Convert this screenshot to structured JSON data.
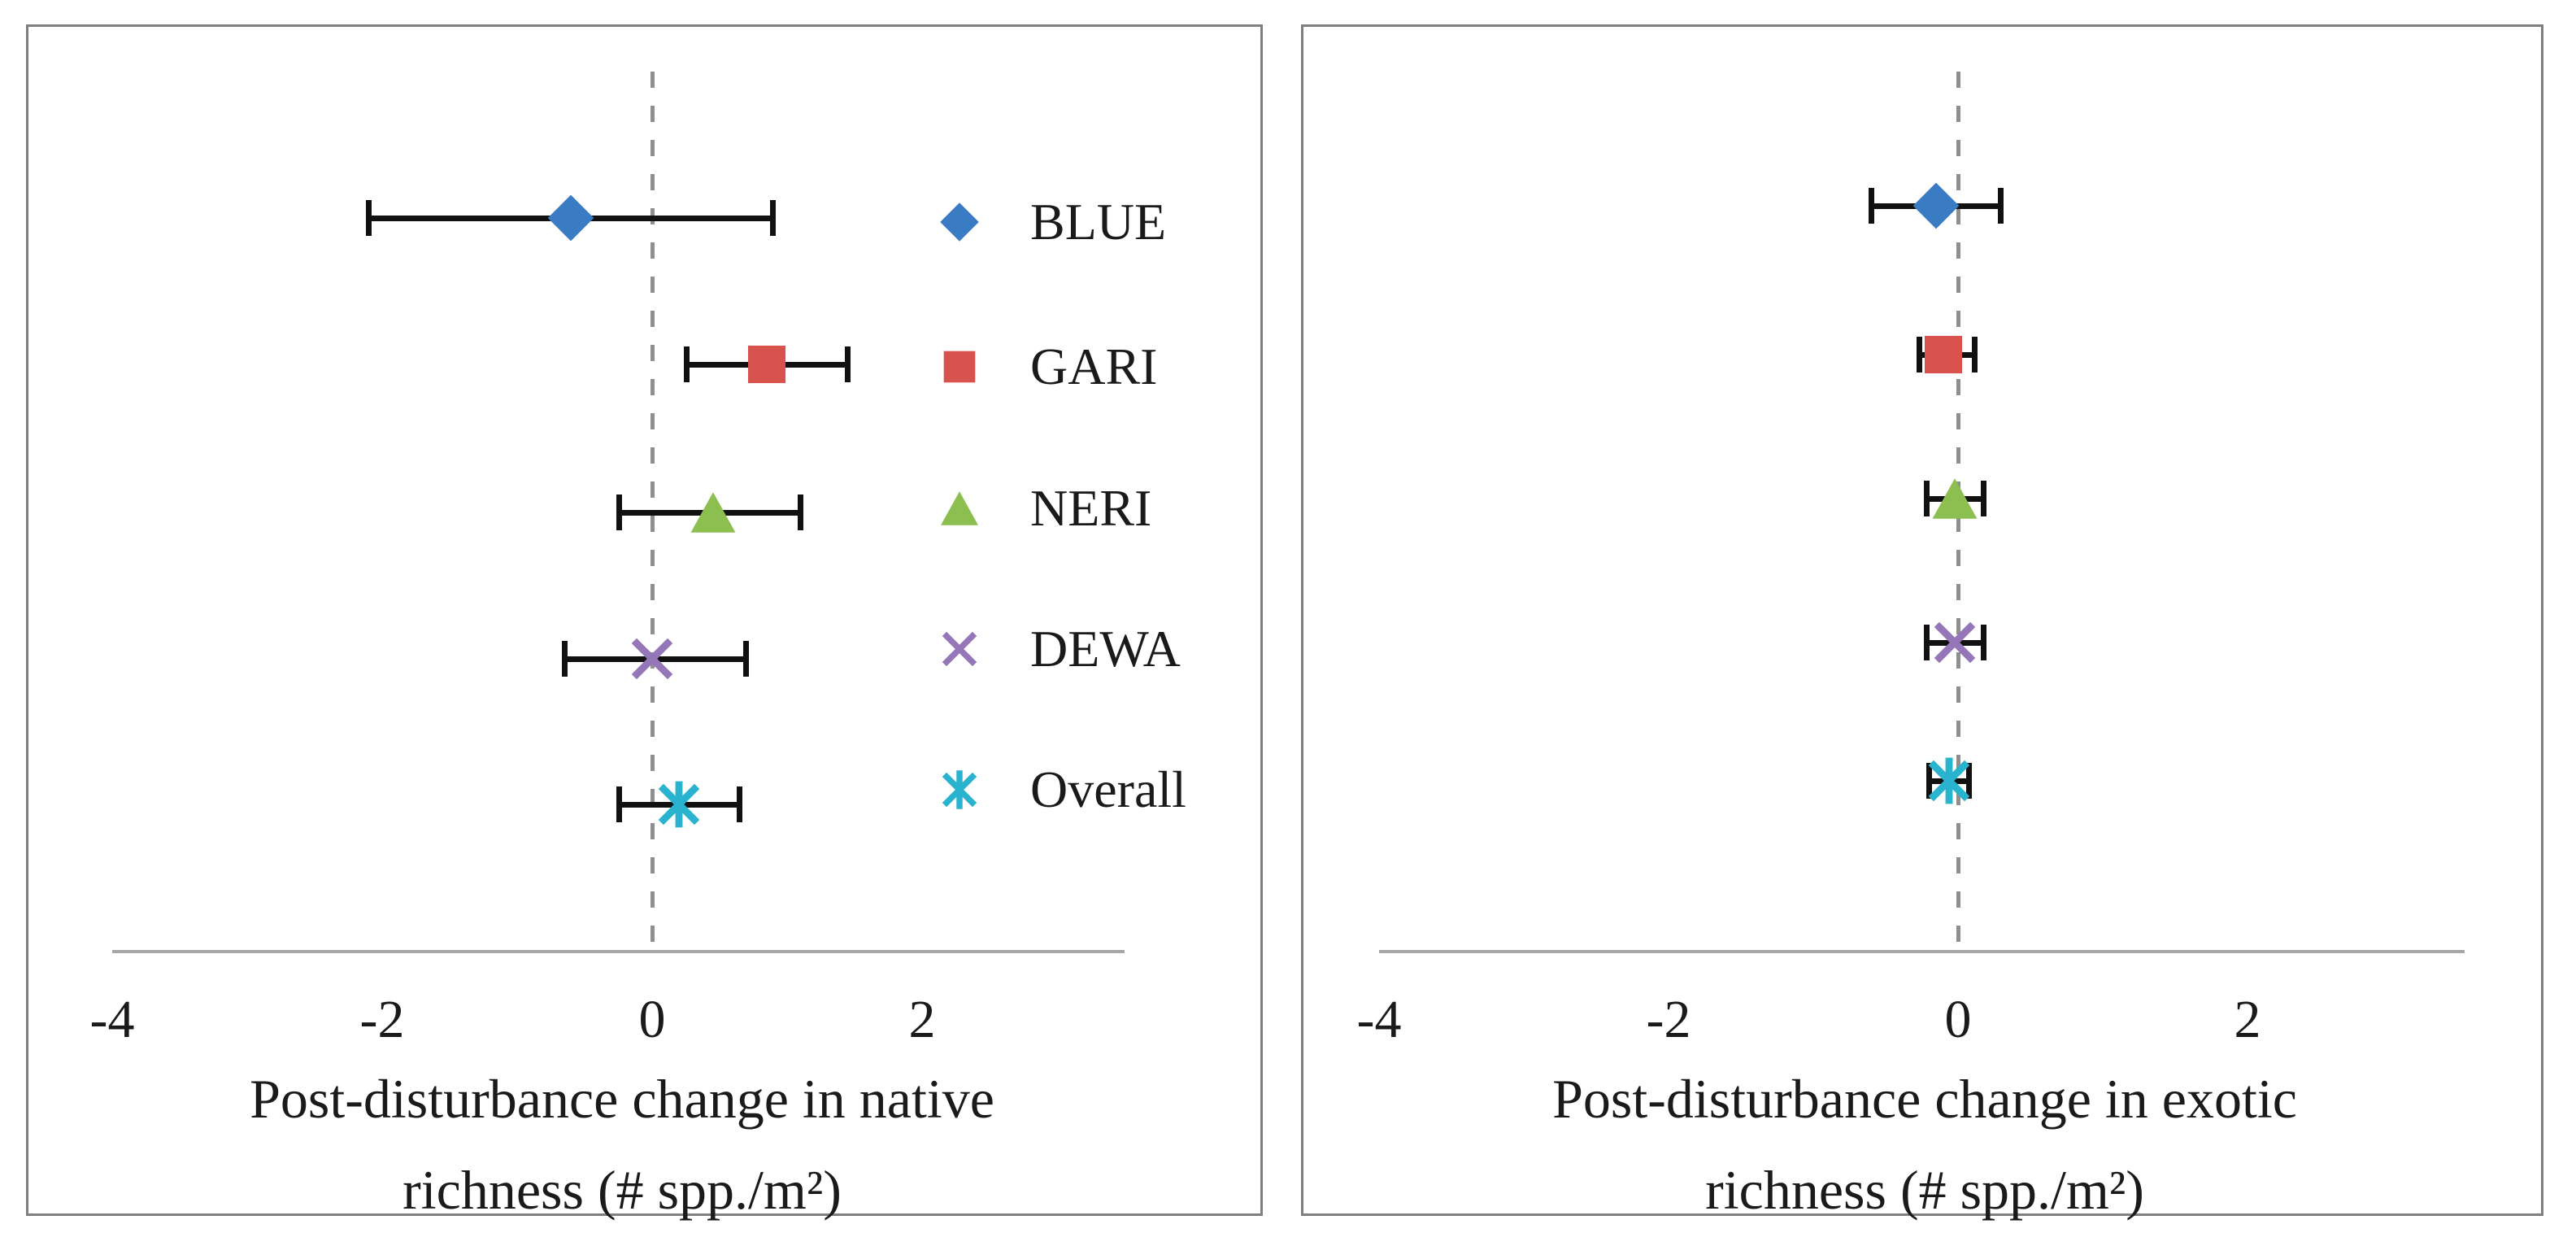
{
  "figure": {
    "background": "#ffffff",
    "panel_border_color": "#7f7f7f",
    "axis_line_color": "#a6a6a6",
    "zero_line_color": "#8f8f8f",
    "error_bar_color": "#111111",
    "text_color": "#1a1a1a"
  },
  "chart_data": [
    {
      "type": "scatter",
      "panel": "native-richness",
      "xlabel_lines": [
        "Post-disturbance change in native",
        "richness (# spp./m²)"
      ],
      "xlabel": "Post-disturbance change in native richness (# spp./m²)",
      "xlim": [
        -4,
        3.5
      ],
      "xticks": [
        -4,
        -2,
        0,
        2
      ],
      "zero_reference_line": 0,
      "grid": false,
      "legend_position": "inside-right",
      "series": [
        {
          "name": "BLUE",
          "marker": "diamond",
          "color": "#3a7cc4",
          "value": -0.6,
          "ci_low": -2.1,
          "ci_high": 0.9
        },
        {
          "name": "GARI",
          "marker": "square",
          "color": "#d9534e",
          "value": 0.85,
          "ci_low": 0.25,
          "ci_high": 1.45
        },
        {
          "name": "NERI",
          "marker": "triangle",
          "color": "#8cbe50",
          "value": 0.45,
          "ci_low": -0.25,
          "ci_high": 1.1
        },
        {
          "name": "DEWA",
          "marker": "x",
          "color": "#9577b9",
          "value": 0.0,
          "ci_low": -0.65,
          "ci_high": 0.7
        },
        {
          "name": "Overall",
          "marker": "asterisk",
          "color": "#2ab3cf",
          "value": 0.2,
          "ci_low": -0.25,
          "ci_high": 0.65
        }
      ]
    },
    {
      "type": "scatter",
      "panel": "exotic-richness",
      "xlabel_lines": [
        "Post-disturbance change in exotic",
        "richness (# spp./m²)"
      ],
      "xlabel": "Post-disturbance change in exotic richness (# spp./m²)",
      "xlim": [
        -4,
        3.5
      ],
      "xticks": [
        -4,
        -2,
        0,
        2
      ],
      "zero_reference_line": 0,
      "grid": false,
      "legend_position": "none",
      "series": [
        {
          "name": "BLUE",
          "marker": "diamond",
          "color": "#3a7cc4",
          "value": -0.15,
          "ci_low": -0.6,
          "ci_high": 0.3
        },
        {
          "name": "GARI",
          "marker": "square",
          "color": "#d9534e",
          "value": -0.1,
          "ci_low": -0.27,
          "ci_high": 0.12
        },
        {
          "name": "NERI",
          "marker": "triangle",
          "color": "#8cbe50",
          "value": -0.02,
          "ci_low": -0.22,
          "ci_high": 0.18
        },
        {
          "name": "DEWA",
          "marker": "x",
          "color": "#9577b9",
          "value": -0.02,
          "ci_low": -0.22,
          "ci_high": 0.18
        },
        {
          "name": "Overall",
          "marker": "asterisk",
          "color": "#2ab3cf",
          "value": -0.06,
          "ci_low": -0.2,
          "ci_high": 0.08
        }
      ]
    }
  ]
}
